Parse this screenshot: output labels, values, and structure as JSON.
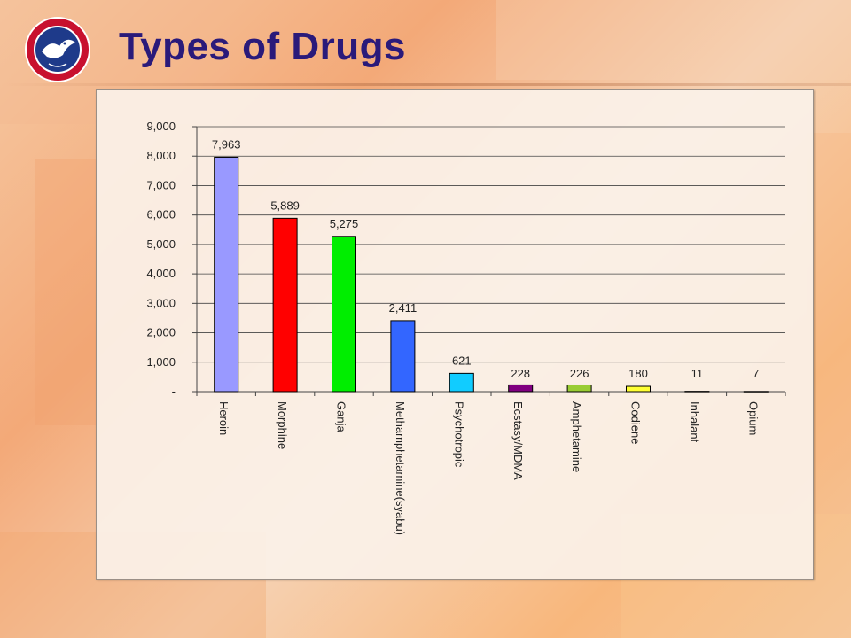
{
  "slide": {
    "title": "Types of Drugs"
  },
  "colors": {
    "title": "#2a1a7a",
    "logo_ring": "#c8102e",
    "logo_inner": "#1e3a8a"
  },
  "chart_data": {
    "type": "bar",
    "title": "",
    "xlabel": "",
    "ylabel": "",
    "ylim": [
      0,
      9000
    ],
    "yticks": [
      0,
      1000,
      2000,
      3000,
      4000,
      5000,
      6000,
      7000,
      8000,
      9000
    ],
    "ytick_labels": [
      "-",
      "1,000",
      "2,000",
      "3,000",
      "4,000",
      "5,000",
      "6,000",
      "7,000",
      "8,000",
      "9,000"
    ],
    "grid": true,
    "legend": "none",
    "categories": [
      "Heroin",
      "Morphine",
      "Ganja",
      "Methamphetamine(syabu)",
      "Psychotropic",
      "Ecstasy/MDMA",
      "Amphetamine",
      "Codiene",
      "Inhalant",
      "Opium"
    ],
    "values": [
      7963,
      5889,
      5275,
      2411,
      621,
      228,
      226,
      180,
      11,
      7
    ],
    "value_labels": [
      "7,963",
      "5,889",
      "5,275",
      "2,411",
      "621",
      "228",
      "226",
      "180",
      "11",
      "7"
    ],
    "bar_colors": [
      "#9999ff",
      "#ff0000",
      "#00ee00",
      "#3366ff",
      "#11ccff",
      "#800080",
      "#99cc33",
      "#ffff33",
      "#ff99cc",
      "#eeeeee"
    ]
  }
}
